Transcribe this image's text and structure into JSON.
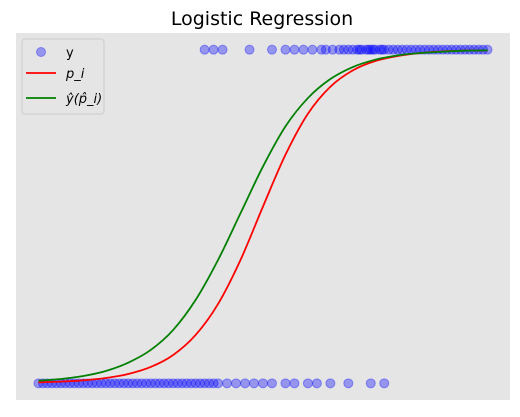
{
  "chart_data": {
    "type": "scatter",
    "title": "Logistic Regression",
    "xlabel": "",
    "ylabel": "",
    "xlim": [
      -0.05,
      1.05
    ],
    "ylim": [
      -0.05,
      1.05
    ],
    "grid": false,
    "axes_visible": false,
    "legend": "top-left",
    "background_color": "#e5e5e5",
    "series": [
      {
        "name": "y",
        "kind": "scatter",
        "color": "#0000ff",
        "opacity": 0.35,
        "points_y1": [
          0.37,
          0.39,
          0.41,
          0.47,
          0.52,
          0.55,
          0.57,
          0.59,
          0.61,
          0.63,
          0.64,
          0.655,
          0.67,
          0.68,
          0.69,
          0.7,
          0.71,
          0.715,
          0.72,
          0.73,
          0.735,
          0.74,
          0.745,
          0.75,
          0.76,
          0.765,
          0.77,
          0.78,
          0.79,
          0.8,
          0.81,
          0.82,
          0.83,
          0.84,
          0.85,
          0.86,
          0.87,
          0.88,
          0.89,
          0.9,
          0.91,
          0.92,
          0.93,
          0.94,
          0.95,
          0.96,
          0.97,
          0.98,
          0.99,
          1.0
        ],
        "points_y0": [
          0.0,
          0.01,
          0.02,
          0.03,
          0.04,
          0.05,
          0.06,
          0.07,
          0.08,
          0.09,
          0.1,
          0.11,
          0.12,
          0.13,
          0.14,
          0.15,
          0.16,
          0.17,
          0.18,
          0.19,
          0.2,
          0.21,
          0.22,
          0.23,
          0.24,
          0.25,
          0.26,
          0.27,
          0.28,
          0.29,
          0.3,
          0.31,
          0.32,
          0.33,
          0.34,
          0.35,
          0.36,
          0.37,
          0.38,
          0.39,
          0.4,
          0.42,
          0.44,
          0.46,
          0.48,
          0.5,
          0.52,
          0.55,
          0.57,
          0.6,
          0.62,
          0.65,
          0.69,
          0.74,
          0.77
        ]
      },
      {
        "name": "p_i",
        "kind": "line",
        "color": "#ff0000",
        "x": [
          0.0,
          0.05,
          0.1,
          0.15,
          0.2,
          0.25,
          0.3,
          0.35,
          0.4,
          0.45,
          0.5,
          0.55,
          0.6,
          0.65,
          0.7,
          0.75,
          0.8,
          0.85,
          0.9,
          0.95,
          1.0
        ],
        "y": [
          0.003,
          0.005,
          0.009,
          0.016,
          0.028,
          0.049,
          0.085,
          0.145,
          0.238,
          0.37,
          0.53,
          0.685,
          0.808,
          0.889,
          0.938,
          0.966,
          0.981,
          0.99,
          0.995,
          0.997,
          0.998
        ]
      },
      {
        "name": "ŷ(p̂_i)",
        "kind": "line",
        "color": "#008000",
        "x": [
          0.0,
          0.05,
          0.1,
          0.15,
          0.2,
          0.25,
          0.3,
          0.35,
          0.4,
          0.45,
          0.5,
          0.55,
          0.6,
          0.65,
          0.7,
          0.75,
          0.8,
          0.85,
          0.9,
          0.95,
          1.0
        ],
        "y": [
          0.008,
          0.013,
          0.022,
          0.037,
          0.062,
          0.1,
          0.16,
          0.25,
          0.37,
          0.51,
          0.65,
          0.77,
          0.855,
          0.912,
          0.948,
          0.97,
          0.983,
          0.99,
          0.994,
          0.997,
          0.998
        ]
      }
    ]
  }
}
